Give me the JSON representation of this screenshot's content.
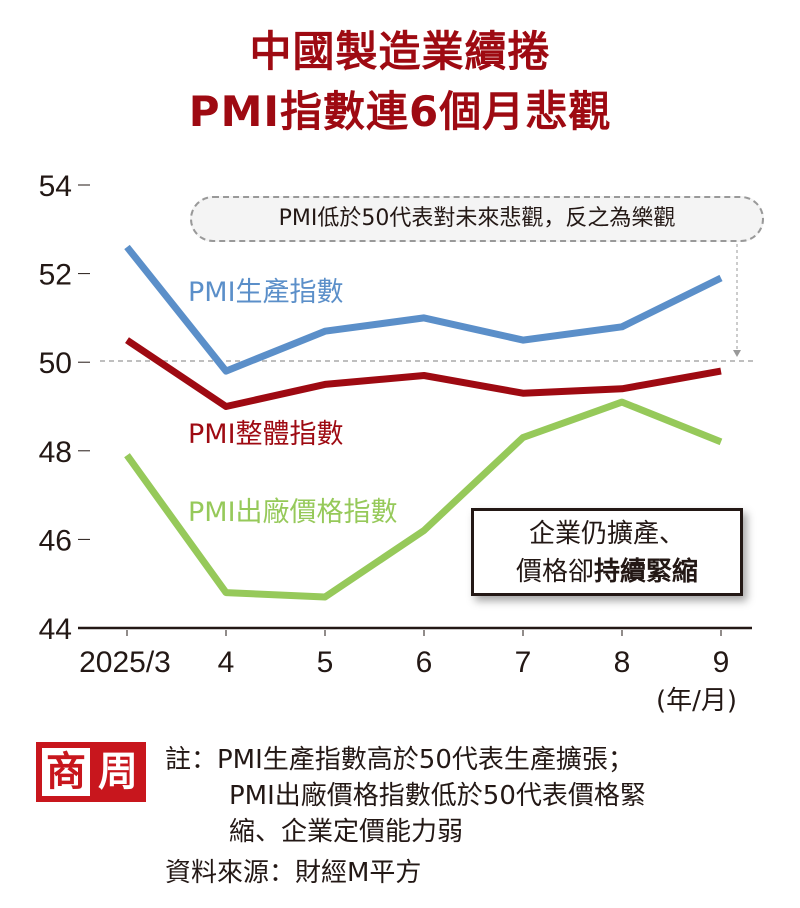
{
  "title": {
    "line1": "中國製造業續捲",
    "line2": "PMI指數連6個月悲觀"
  },
  "annotation": {
    "pill": "PMI低於50代表對未來悲觀，反之為樂觀",
    "callout_line1": "企業仍擴產、",
    "callout_line2_normal": "價格卻",
    "callout_line2_bold": "持續緊縮"
  },
  "axis": {
    "unit": "(年/月)",
    "y_ticks": [
      "54",
      "52",
      "50",
      "48",
      "46",
      "44"
    ],
    "x_ticks": [
      "2025/3",
      "4",
      "5",
      "6",
      "7",
      "8",
      "9"
    ]
  },
  "labels": {
    "production": "PMI生產指數",
    "total": "PMI整體指數",
    "price": "PMI出廠價格指數"
  },
  "logo": {
    "char1": "商",
    "char2": "周"
  },
  "footer": {
    "note_line1": "註：PMI生產指數高於50代表生產擴張；",
    "note_line2": "PMI出廠價格指數低於50代表價格緊",
    "note_line3": "縮、企業定價能力弱",
    "source": "資料來源：財經M平方"
  },
  "colors": {
    "title": "#9e0a12",
    "production": "#5b8fc9",
    "total": "#9e0a12",
    "price": "#96c95a",
    "logo": "#c8161d"
  },
  "chart_data": {
    "type": "line",
    "title": "中國製造業續捲 PMI指數連6個月悲觀",
    "xlabel": "(年/月)",
    "ylabel": "",
    "categories": [
      "2025/3",
      "4",
      "5",
      "6",
      "7",
      "8",
      "9"
    ],
    "ylim": [
      44,
      54
    ],
    "yticks": [
      44,
      46,
      48,
      50,
      52,
      54
    ],
    "reference_line": 50,
    "grid": false,
    "legend": "inline labels",
    "series": [
      {
        "name": "PMI生產指數",
        "color": "#5b8fc9",
        "values": [
          52.6,
          49.8,
          50.7,
          51.0,
          50.5,
          50.8,
          51.9
        ]
      },
      {
        "name": "PMI整體指數",
        "color": "#9e0a12",
        "values": [
          50.5,
          49.0,
          49.5,
          49.7,
          49.3,
          49.4,
          49.8
        ]
      },
      {
        "name": "PMI出廠價格指數",
        "color": "#96c95a",
        "values": [
          47.9,
          44.8,
          44.7,
          46.2,
          48.3,
          49.1,
          48.2
        ]
      }
    ],
    "annotations": [
      "PMI低於50代表對未來悲觀，反之為樂觀",
      "企業仍擴產、價格卻持續緊縮"
    ]
  }
}
